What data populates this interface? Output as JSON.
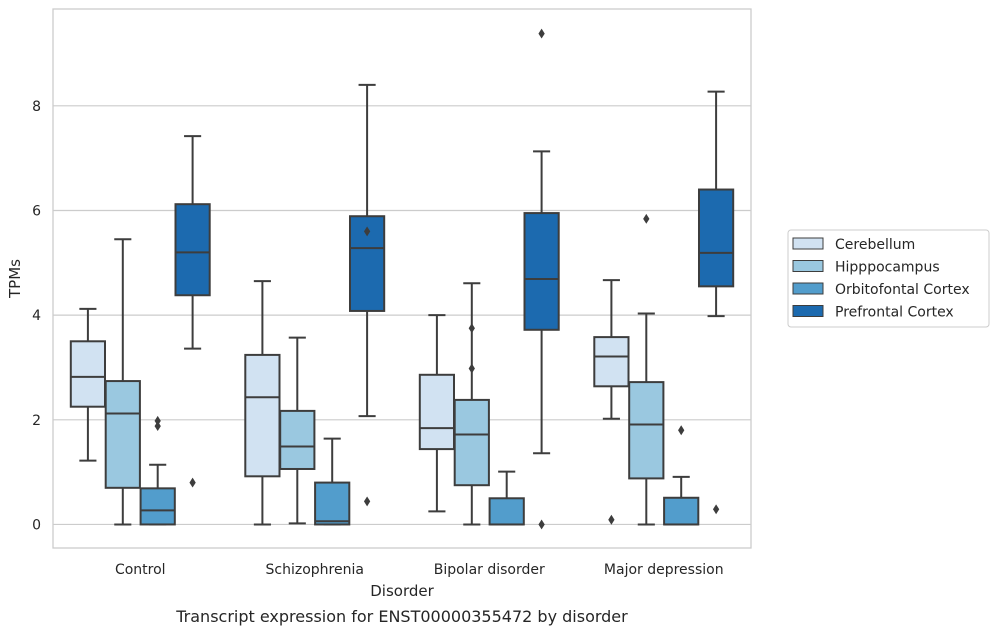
{
  "chart_data": {
    "type": "box",
    "caption": "Transcript expression for ENST00000355472 by disorder",
    "xlabel": "Disorder",
    "ylabel": "TPMs",
    "ylim": [
      -0.45,
      9.85
    ],
    "yticks": [
      0,
      2,
      4,
      6,
      8
    ],
    "grid": "horizontal",
    "legend_position": "right",
    "categories": [
      "Control",
      "Schizophrenia",
      "Bipolar disorder",
      "Major depression"
    ],
    "series": [
      {
        "name": "Cerebellum",
        "color": "#d1e2f2",
        "boxes": [
          {
            "whislo": 1.22,
            "q1": 2.25,
            "med": 2.82,
            "q3": 3.5,
            "whishi": 4.12,
            "fliers": []
          },
          {
            "whislo": 0.0,
            "q1": 0.92,
            "med": 2.43,
            "q3": 3.24,
            "whishi": 4.65,
            "fliers": []
          },
          {
            "whislo": 0.25,
            "q1": 1.44,
            "med": 1.84,
            "q3": 2.86,
            "whishi": 4.0,
            "fliers": []
          },
          {
            "whislo": 2.02,
            "q1": 2.64,
            "med": 3.21,
            "q3": 3.58,
            "whishi": 4.67,
            "fliers": [
              0.09
            ]
          }
        ]
      },
      {
        "name": "Hipppocampus",
        "color": "#9ac8e0",
        "boxes": [
          {
            "whislo": 0.0,
            "q1": 0.7,
            "med": 2.12,
            "q3": 2.74,
            "whishi": 5.45,
            "fliers": []
          },
          {
            "whislo": 0.02,
            "q1": 1.06,
            "med": 1.49,
            "q3": 2.17,
            "whishi": 3.57,
            "fliers": []
          },
          {
            "whislo": 0.0,
            "q1": 0.75,
            "med": 1.72,
            "q3": 2.38,
            "whishi": 4.61,
            "fliers": [
              2.98,
              3.75
            ]
          },
          {
            "whislo": 0.0,
            "q1": 0.88,
            "med": 1.91,
            "q3": 2.72,
            "whishi": 4.03,
            "fliers": [
              5.84
            ]
          }
        ]
      },
      {
        "name": "Orbitofontal Cortex",
        "color": "#529dcc",
        "boxes": [
          {
            "whislo": 0.0,
            "q1": 0.0,
            "med": 0.27,
            "q3": 0.69,
            "whishi": 1.14,
            "fliers": [
              1.88,
              1.98
            ]
          },
          {
            "whislo": 0.0,
            "q1": 0.0,
            "med": 0.06,
            "q3": 0.8,
            "whishi": 1.64,
            "fliers": []
          },
          {
            "whislo": 0.0,
            "q1": 0.0,
            "med": 0.0,
            "q3": 0.5,
            "whishi": 1.01,
            "fliers": []
          },
          {
            "whislo": 0.0,
            "q1": 0.0,
            "med": 0.0,
            "q3": 0.51,
            "whishi": 0.91,
            "fliers": [
              1.8
            ]
          }
        ]
      },
      {
        "name": "Prefrontal Cortex",
        "color": "#1c6aaf",
        "boxes": [
          {
            "whislo": 3.36,
            "q1": 4.38,
            "med": 5.2,
            "q3": 6.12,
            "whishi": 7.42,
            "fliers": [
              0.8
            ]
          },
          {
            "whislo": 2.07,
            "q1": 4.08,
            "med": 5.28,
            "q3": 5.89,
            "whishi": 8.4,
            "fliers": [
              5.6,
              0.44
            ]
          },
          {
            "whislo": 1.36,
            "q1": 3.72,
            "med": 4.69,
            "q3": 5.95,
            "whishi": 7.13,
            "fliers": [
              9.38,
              0.0
            ]
          },
          {
            "whislo": 3.98,
            "q1": 4.55,
            "med": 5.19,
            "q3": 6.4,
            "whishi": 8.27,
            "fliers": [
              0.29
            ]
          }
        ]
      }
    ]
  }
}
